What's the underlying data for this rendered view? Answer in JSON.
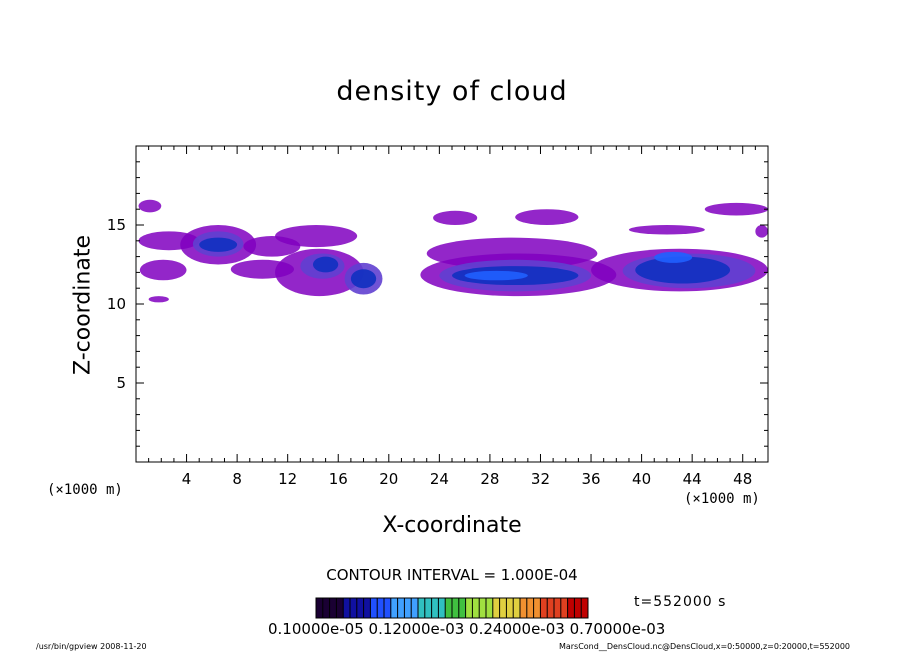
{
  "chart_data": {
    "type": "heatmap",
    "title": "density of cloud",
    "xlabel": "X-coordinate",
    "ylabel": "Z-coordinate",
    "x_unit": "(×1000 m)",
    "xlim": [
      0,
      50
    ],
    "ylim": [
      0,
      20
    ],
    "x_ticks": [
      4,
      8,
      12,
      16,
      20,
      24,
      28,
      32,
      36,
      40,
      44,
      48
    ],
    "y_ticks": [
      5,
      10,
      15
    ],
    "contour_interval_label": "CONTOUR INTERVAL = 1.000E-04",
    "time_label": "t=552000 s",
    "colorbar_text": "0.10000e-05 0.12000e-03 0.24000e-03 0.70000e-03",
    "colorbar_colors": [
      "#1a0033",
      "#1010a0",
      "#2050ff",
      "#40a0ff",
      "#30c0c0",
      "#40c040",
      "#a0e040",
      "#e0d040",
      "#f09030",
      "#e04020",
      "#c00000"
    ],
    "colors": {
      "low": "#8000c0",
      "mid": "#6040d0",
      "high": "#1030c0",
      "peak": "#2060ff"
    },
    "cloud_bands": [
      {
        "x": [
          0.2,
          2.0
        ],
        "z": [
          15.8,
          16.6
        ],
        "level": "low"
      },
      {
        "x": [
          0.2,
          5.0
        ],
        "z": [
          13.4,
          14.6
        ],
        "level": "low"
      },
      {
        "x": [
          0.3,
          4.0
        ],
        "z": [
          11.5,
          12.8
        ],
        "level": "low"
      },
      {
        "x": [
          1.0,
          2.6
        ],
        "z": [
          10.1,
          10.5
        ],
        "level": "low"
      },
      {
        "x": [
          3.5,
          9.5
        ],
        "z": [
          12.5,
          15.0
        ],
        "level": "low"
      },
      {
        "x": [
          4.5,
          8.5
        ],
        "z": [
          13.0,
          14.6
        ],
        "level": "mid"
      },
      {
        "x": [
          5.0,
          8.0
        ],
        "z": [
          13.3,
          14.2
        ],
        "level": "high"
      },
      {
        "x": [
          8.5,
          13.0
        ],
        "z": [
          13.0,
          14.3
        ],
        "level": "low"
      },
      {
        "x": [
          11.0,
          17.5
        ],
        "z": [
          13.6,
          15.0
        ],
        "level": "low"
      },
      {
        "x": [
          7.5,
          12.5
        ],
        "z": [
          11.6,
          12.8
        ],
        "level": "low"
      },
      {
        "x": [
          11.0,
          18.0
        ],
        "z": [
          10.5,
          13.5
        ],
        "level": "low"
      },
      {
        "x": [
          13.0,
          16.5
        ],
        "z": [
          11.6,
          13.2
        ],
        "level": "mid"
      },
      {
        "x": [
          14.0,
          16.0
        ],
        "z": [
          12.0,
          13.0
        ],
        "level": "high"
      },
      {
        "x": [
          16.5,
          19.5
        ],
        "z": [
          10.6,
          12.6
        ],
        "level": "mid"
      },
      {
        "x": [
          17.0,
          19.0
        ],
        "z": [
          11.0,
          12.2
        ],
        "level": "high"
      },
      {
        "x": [
          23.5,
          27.0
        ],
        "z": [
          15.0,
          15.9
        ],
        "level": "low"
      },
      {
        "x": [
          30.0,
          35.0
        ],
        "z": [
          15.0,
          16.0
        ],
        "level": "low"
      },
      {
        "x": [
          23.0,
          36.5
        ],
        "z": [
          12.2,
          14.2
        ],
        "level": "low"
      },
      {
        "x": [
          22.5,
          38.0
        ],
        "z": [
          10.5,
          13.2
        ],
        "level": "low"
      },
      {
        "x": [
          24.0,
          36.0
        ],
        "z": [
          10.8,
          12.8
        ],
        "level": "mid"
      },
      {
        "x": [
          25.0,
          35.0
        ],
        "z": [
          11.2,
          12.4
        ],
        "level": "high"
      },
      {
        "x": [
          26.0,
          31.0
        ],
        "z": [
          11.5,
          12.1
        ],
        "level": "peak"
      },
      {
        "x": [
          36.0,
          50.0
        ],
        "z": [
          10.8,
          13.5
        ],
        "level": "low"
      },
      {
        "x": [
          39.0,
          45.0
        ],
        "z": [
          14.4,
          15.0
        ],
        "level": "low"
      },
      {
        "x": [
          38.5,
          49.0
        ],
        "z": [
          11.0,
          13.2
        ],
        "level": "mid"
      },
      {
        "x": [
          39.5,
          47.0
        ],
        "z": [
          11.3,
          13.0
        ],
        "level": "high"
      },
      {
        "x": [
          41.0,
          44.0
        ],
        "z": [
          12.6,
          13.3
        ],
        "level": "peak"
      },
      {
        "x": [
          45.0,
          50.0
        ],
        "z": [
          15.6,
          16.4
        ],
        "level": "low"
      },
      {
        "x": [
          49.0,
          50.0
        ],
        "z": [
          14.2,
          15.0
        ],
        "level": "low"
      }
    ]
  },
  "footer": {
    "left": "/usr/bin/gpview   2008-11-20",
    "right": "MarsCond__DensCloud.nc@DensCloud,x=0:50000,z=0:20000,t=552000"
  }
}
